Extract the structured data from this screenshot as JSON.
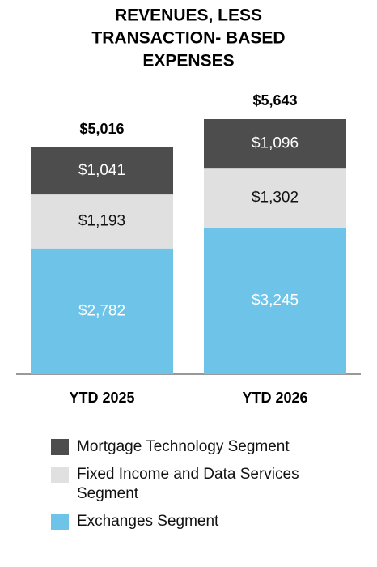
{
  "chart_data": {
    "type": "stacked_bar",
    "title": [
      "REVENUES, LESS",
      "TRANSACTION- BASED",
      "EXPENSES"
    ],
    "categories": [
      "YTD 2025",
      "YTD 2026"
    ],
    "totals": [
      5016,
      5643
    ],
    "total_labels": [
      "$5,016",
      "$5,643"
    ],
    "series": [
      {
        "name": "Exchanges Segment",
        "color": "#6ec4e8",
        "label_color": "#ffffff",
        "values": [
          2782,
          3245
        ],
        "value_labels": [
          "$2,782",
          "$3,245"
        ]
      },
      {
        "name": "Fixed Income and Data Services Segment",
        "color": "#e0e0e0",
        "label_color": "#111111",
        "values": [
          1193,
          1302
        ],
        "value_labels": [
          "$1,193",
          "$1,302"
        ]
      },
      {
        "name": "Mortgage Technology Segment",
        "color": "#4d4d4d",
        "label_color": "#ffffff",
        "values": [
          1041,
          1096
        ],
        "value_labels": [
          "$1,041",
          "$1,096"
        ]
      }
    ]
  }
}
